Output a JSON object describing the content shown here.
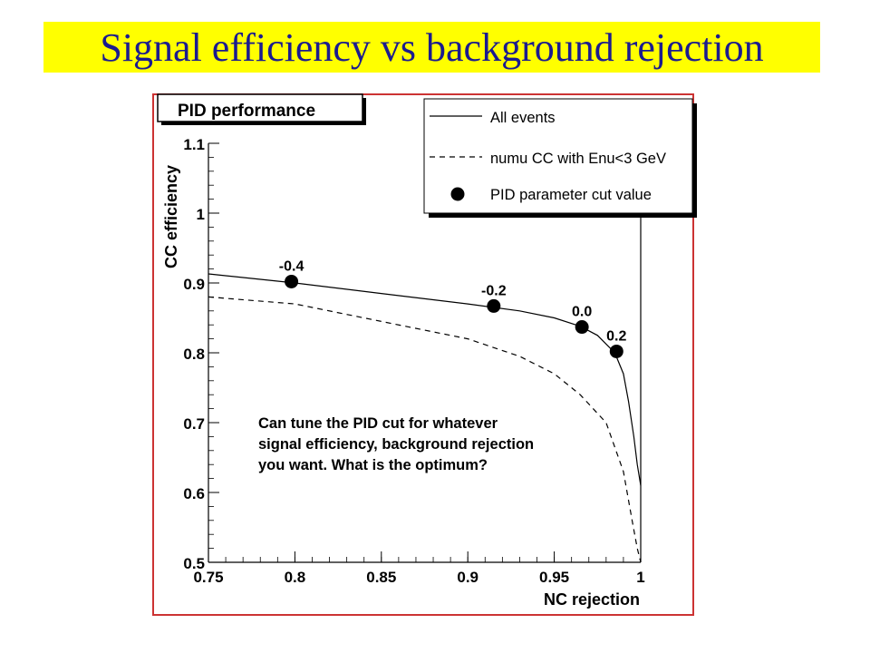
{
  "slide": {
    "title": "Signal efficiency vs background rejection",
    "annotation": "Can tune the PID cut for whatever signal efficiency, background rejection you want. What is the optimum?"
  },
  "colors": {
    "title_bg": "#ffff00",
    "title_text": "#1b1b8f",
    "frame": "#cc3333"
  },
  "chart_data": {
    "type": "line",
    "title": "PID performance",
    "xlabel": "NC rejection",
    "ylabel": "CC efficiency",
    "xlim": [
      0.75,
      1.0
    ],
    "ylim": [
      0.5,
      1.1
    ],
    "xticks": [
      0.75,
      0.8,
      0.85,
      0.9,
      0.95,
      1.0
    ],
    "xtick_labels": [
      "0.75",
      "0.8",
      "0.85",
      "0.9",
      "0.95",
      "1"
    ],
    "yticks": [
      0.5,
      0.6,
      0.7,
      0.8,
      0.9,
      1.0,
      1.1
    ],
    "ytick_labels": [
      "0.5",
      "0.6",
      "0.7",
      "0.8",
      "0.9",
      "1",
      "1.1"
    ],
    "legend_position": "top-right",
    "legend": [
      "All events",
      "numu CC with Enu<3 GeV",
      "PID parameter cut value"
    ],
    "series": [
      {
        "name": "All events",
        "style": "solid",
        "x": [
          0.75,
          0.8,
          0.85,
          0.9,
          0.93,
          0.95,
          0.965,
          0.975,
          0.985,
          0.99,
          0.993,
          0.996,
          0.998,
          1.0
        ],
        "y": [
          0.913,
          0.9,
          0.885,
          0.87,
          0.86,
          0.85,
          0.838,
          0.825,
          0.8,
          0.77,
          0.73,
          0.68,
          0.64,
          0.61
        ]
      },
      {
        "name": "numu CC with Enu<3 GeV",
        "style": "dashed",
        "x": [
          0.75,
          0.8,
          0.85,
          0.9,
          0.93,
          0.95,
          0.965,
          0.98,
          0.99,
          0.995,
          0.998,
          1.0
        ],
        "y": [
          0.88,
          0.87,
          0.845,
          0.82,
          0.795,
          0.77,
          0.74,
          0.7,
          0.63,
          0.56,
          0.52,
          0.5
        ]
      },
      {
        "name": "PID parameter cut value",
        "style": "markers",
        "x": [
          0.798,
          0.915,
          0.966,
          0.986
        ],
        "y": [
          0.902,
          0.867,
          0.837,
          0.802
        ],
        "labels": [
          "-0.4",
          "-0.2",
          "0.0",
          "0.2"
        ]
      }
    ]
  }
}
